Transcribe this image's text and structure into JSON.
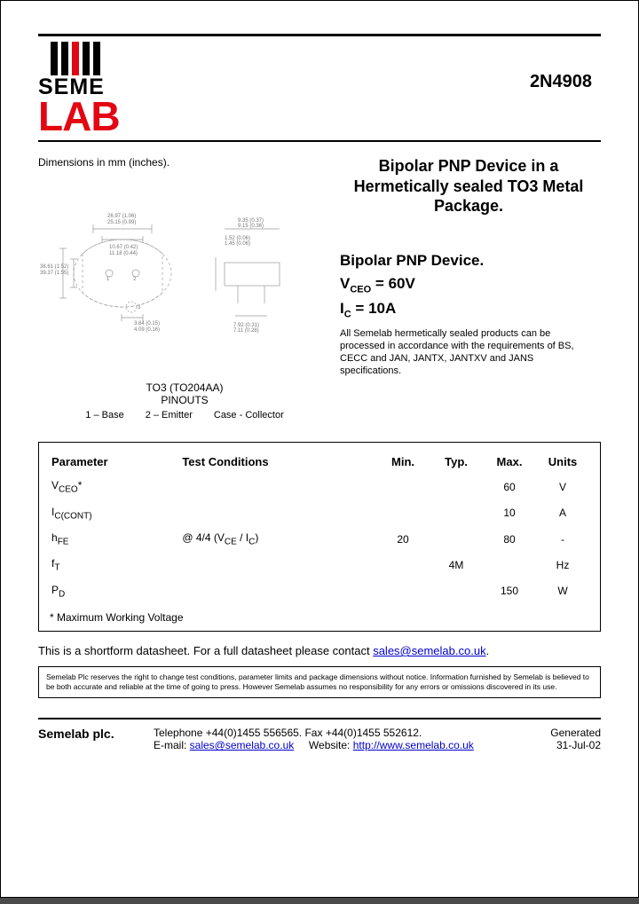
{
  "part_number": "2N4908",
  "logo": {
    "seme": "SEME",
    "lab": "LAB"
  },
  "dimensions_label": "Dimensions in mm (inches).",
  "title_desc": "Bipolar PNP Device in a Hermetically sealed TO3 Metal Package.",
  "subtitle": "Bipolar PNP Device.",
  "spec_vceo_label": "V",
  "spec_vceo_sub": "CEO",
  "spec_vceo_val": "=  60V",
  "spec_ic_label": "I",
  "spec_ic_sub": "C",
  "spec_ic_val": "= 10A",
  "compliance": "All Semelab hermetically sealed products can be processed in accordance with the requirements of BS, CECC and JAN, JANTX, JANTXV and JANS specifications.",
  "pinouts": {
    "package": "TO3 (TO204AA)",
    "label": "PINOUTS",
    "pins": [
      "1 – Base",
      "2 – Emitter",
      "Case - Collector"
    ]
  },
  "table": {
    "headers": [
      "Parameter",
      "Test Conditions",
      "Min.",
      "Typ.",
      "Max.",
      "Units"
    ],
    "rows": [
      {
        "param_html": "V<sub>CEO</sub>*",
        "cond": "",
        "min": "",
        "typ": "",
        "max": "60",
        "units": "V"
      },
      {
        "param_html": "I<sub>C(CONT)</sub>",
        "cond": "",
        "min": "",
        "typ": "",
        "max": "10",
        "units": "A"
      },
      {
        "param_html": "h<sub>FE</sub>",
        "cond": "@ 4/4 (V<sub>CE</sub> / I<sub>C</sub>)",
        "min": "20",
        "typ": "",
        "max": "80",
        "units": "-"
      },
      {
        "param_html": "f<sub>T</sub>",
        "cond": "",
        "min": "",
        "typ": "4M",
        "max": "",
        "units": "Hz"
      },
      {
        "param_html": "P<sub>D</sub>",
        "cond": "",
        "min": "",
        "typ": "",
        "max": "150",
        "units": "W"
      }
    ],
    "footnote": "* Maximum Working Voltage"
  },
  "shortform_pre": "This is a shortform datasheet. For a full datasheet please contact ",
  "shortform_link": "sales@semelab.co.uk",
  "shortform_post": ".",
  "disclaimer": "Semelab Plc reserves the right to change test conditions, parameter limits and package dimensions without notice. Information furnished by Semelab is believed to be both accurate and reliable at the time of going to press. However Semelab assumes no responsibility for any errors or omissions discovered in its use.",
  "footer": {
    "company": "Semelab plc.",
    "phone": "Telephone +44(0)1455 556565. Fax +44(0)1455 552612.",
    "email_label": "E-mail: ",
    "email": "sales@semelab.co.uk",
    "web_label": "Website: ",
    "web": "http://www.semelab.co.uk",
    "generated_label": "Generated",
    "generated_date": "31-Jul-02"
  },
  "colors": {
    "brand_red": "#e30613",
    "link_blue": "#0000cc",
    "text": "#000000",
    "page_bg": "#ffffff"
  }
}
